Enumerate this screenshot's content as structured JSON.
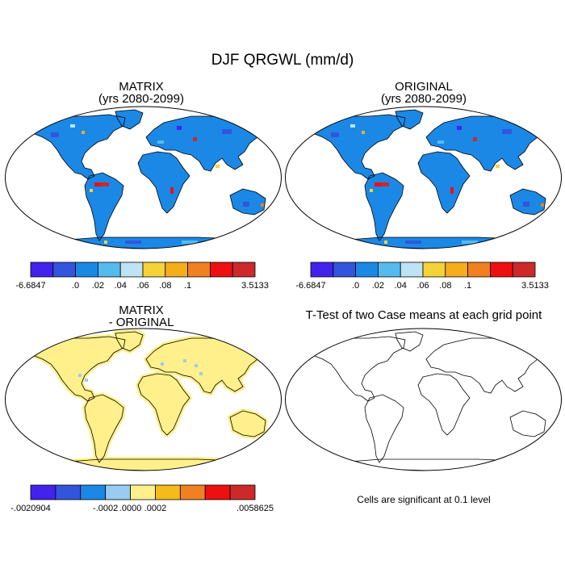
{
  "title": "DJF QRGWL (mm/d)",
  "panels": [
    {
      "id": "matrix",
      "title_line1": "MATRIX",
      "title_line2": "(yrs 2080-2099)"
    },
    {
      "id": "original",
      "title_line1": "ORIGINAL",
      "title_line2": "(yrs 2080-2099)"
    },
    {
      "id": "diff",
      "title_line1": "MATRIX",
      "title_line2": "- ORIGINAL"
    },
    {
      "id": "ttest",
      "title_line1": "T-Test of two Case means at each grid point",
      "title_line2": ""
    }
  ],
  "colorbar_main": {
    "colors": [
      "#4422ee",
      "#3355dd",
      "#1b88e6",
      "#55bbee",
      "#bfe3f4",
      "#f6d23a",
      "#f5ad1c",
      "#f08020",
      "#ee1010",
      "#cc2a2a"
    ],
    "labels": [
      "-6.6847",
      ".0",
      ".02",
      ".04",
      ".06",
      ".08",
      ".1",
      "3.5133"
    ]
  },
  "colorbar_diff": {
    "colors": [
      "#4422ee",
      "#3355dd",
      "#1b88e6",
      "#99ccf0",
      "#fff08c",
      "#f5ba1c",
      "#f08020",
      "#ee1010",
      "#cc2a2a"
    ],
    "labels": [
      "-.0020904",
      "-.0002",
      ".0000",
      ".0002",
      ".0058625"
    ]
  },
  "footnote": "Cells are significant at 0.1 level"
}
